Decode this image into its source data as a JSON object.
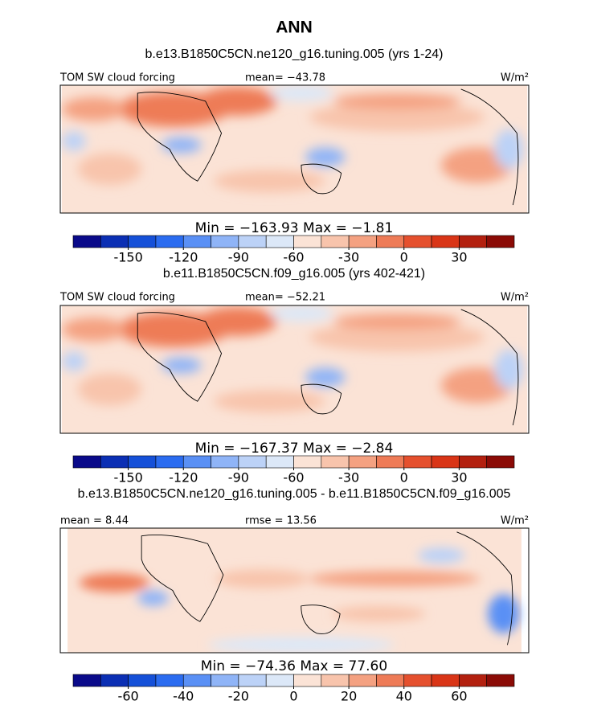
{
  "title": "ANN",
  "panels": [
    {
      "subtitle": "b.e13.B1850C5CN.ne120_g16.tuning.005 (yrs 1-24)",
      "left_label": "TOM SW cloud forcing",
      "center_label": "mean= −43.78",
      "units": "W/m²",
      "stats_label": "Min = −163.93 Max = −1.81",
      "colorbar": {
        "range": [
          -180,
          60
        ],
        "ticks": [
          -150,
          -120,
          -90,
          -60,
          -30,
          0,
          30
        ],
        "colors": [
          "#0a0a8a",
          "#0b2fb4",
          "#1550d8",
          "#2b6cf0",
          "#5a90f5",
          "#8fb4f7",
          "#bcd2f7",
          "#dce8f8",
          "#fbe3d6",
          "#f8c4ac",
          "#f4a181",
          "#ee7b57",
          "#e5502e",
          "#d93517",
          "#b3200f",
          "#8b0b06"
        ]
      }
    },
    {
      "subtitle": "b.e11.B1850C5CN.f09_g16.005 (yrs 402-421)",
      "left_label": "TOM SW cloud forcing",
      "center_label": "mean= −52.21",
      "units": "W/m²",
      "stats_label": "Min = −167.37 Max = −2.84",
      "colorbar": {
        "range": [
          -180,
          60
        ],
        "ticks": [
          -150,
          -120,
          -90,
          -60,
          -30,
          0,
          30
        ],
        "colors": [
          "#0a0a8a",
          "#0b2fb4",
          "#1550d8",
          "#2b6cf0",
          "#5a90f5",
          "#8fb4f7",
          "#bcd2f7",
          "#dce8f8",
          "#fbe3d6",
          "#f8c4ac",
          "#f4a181",
          "#ee7b57",
          "#e5502e",
          "#d93517",
          "#b3200f",
          "#8b0b06"
        ]
      }
    },
    {
      "subtitle": "b.e13.B1850C5CN.ne120_g16.tuning.005 - b.e11.B1850C5CN.f09_g16.005",
      "left_label": "mean = 8.44",
      "center_label": "rmse = 13.56",
      "units": "W/m²",
      "stats_label": "Min = −74.36 Max = 77.60",
      "colorbar": {
        "range": [
          -80,
          80
        ],
        "ticks": [
          -60,
          -40,
          -20,
          0,
          20,
          40,
          60
        ],
        "colors": [
          "#0a0a8a",
          "#0b2fb4",
          "#1550d8",
          "#2b6cf0",
          "#5a90f5",
          "#8fb4f7",
          "#bcd2f7",
          "#dce8f8",
          "#fbe3d6",
          "#f8c4ac",
          "#f4a181",
          "#ee7b57",
          "#e5502e",
          "#d93517",
          "#b3200f",
          "#8b0b06"
        ]
      }
    }
  ]
}
